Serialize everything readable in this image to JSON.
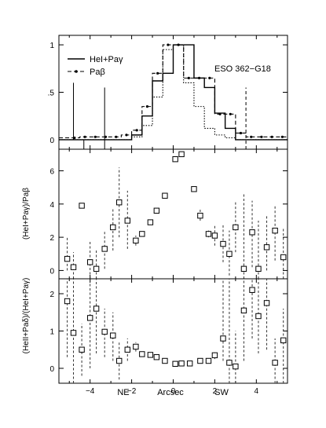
{
  "chart_data": [
    {
      "type": "line",
      "xlim": [
        -5.5,
        5.5
      ],
      "ylim": [
        -0.1,
        1.1
      ],
      "yticks": [
        {
          "v": 0,
          "label": "0"
        },
        {
          "v": 0.5,
          "label": ".5"
        },
        {
          "v": 1,
          "label": "1"
        }
      ],
      "annotation": "ESO 362−G18",
      "legend_position": "top-left",
      "series": [
        {
          "name": "HeI+Paγ",
          "style": "solid-step",
          "x": [
            -5.5,
            -5.0,
            -4.5,
            -4.0,
            -3.5,
            -3.0,
            -2.5,
            -2.0,
            -1.5,
            -1.0,
            -0.5,
            0.0,
            0.5,
            1.0,
            1.5,
            2.0,
            2.5,
            3.0,
            3.5,
            4.0,
            4.5,
            5.0,
            5.5
          ],
          "y": [
            0.0,
            0.0,
            0.0,
            0.0,
            0.0,
            0.0,
            0.0,
            0.05,
            0.25,
            0.62,
            0.7,
            1.0,
            1.0,
            0.65,
            0.55,
            0.28,
            0.12,
            0.0,
            0.0,
            0.0,
            0.0,
            0.0,
            0.0
          ]
        },
        {
          "name": "Paβ",
          "style": "dashed-step-points",
          "x": [
            -5.5,
            -5.0,
            -4.5,
            -4.0,
            -3.5,
            -3.0,
            -2.5,
            -2.0,
            -1.5,
            -1.0,
            -0.5,
            0.0,
            0.5,
            1.0,
            1.5,
            2.0,
            2.5,
            3.0,
            3.5,
            4.0,
            4.5,
            5.0,
            5.5
          ],
          "y": [
            0.02,
            0.02,
            0.03,
            0.03,
            0.03,
            0.03,
            0.05,
            0.1,
            0.35,
            0.7,
            1.0,
            1.0,
            0.65,
            0.65,
            0.65,
            0.27,
            0.27,
            0.07,
            0.03,
            0.03,
            0.03,
            0.03,
            0.03
          ]
        },
        {
          "name": "",
          "style": "dotted-step",
          "x": [
            -5.5,
            -5.0,
            -4.5,
            -4.0,
            -3.5,
            -3.0,
            -2.5,
            -2.0,
            -1.5,
            -1.0,
            -0.5,
            0.0,
            0.5,
            1.0,
            1.5,
            2.0,
            2.5,
            3.0,
            3.5,
            4.0,
            4.5,
            5.0,
            5.5
          ],
          "y": [
            0.0,
            0.0,
            0.0,
            0.0,
            0.0,
            0.0,
            0.0,
            0.03,
            0.15,
            0.45,
            0.95,
            1.0,
            0.6,
            0.35,
            0.12,
            0.05,
            0.02,
            0.0,
            0.0,
            0.0,
            0.0,
            0.0,
            0.0
          ]
        }
      ],
      "vertical_lines": [
        {
          "x": -4.8,
          "y0": 0,
          "y1": 0.6,
          "style": "solid"
        },
        {
          "x": -4.3,
          "y0": -0.1,
          "y1": 0.0,
          "style": "solid"
        },
        {
          "x": -3.3,
          "y0": -0.1,
          "y1": 0.55,
          "style": "solid"
        },
        {
          "x": 3.5,
          "y0": -0.1,
          "y1": 0.55,
          "style": "dashed"
        }
      ]
    },
    {
      "type": "scatter",
      "ylabel": "(HeI+Paγ)/Paβ",
      "xlim": [
        -5.5,
        5.5
      ],
      "ylim": [
        -0.5,
        7.3
      ],
      "yticks": [
        {
          "v": 0,
          "label": "0"
        },
        {
          "v": 2,
          "label": "2"
        },
        {
          "v": 4,
          "label": "4"
        },
        {
          "v": 6,
          "label": "6"
        }
      ],
      "points": [
        {
          "x": -5.1,
          "y": 0.7,
          "lo": 0.0,
          "hi": 2.0
        },
        {
          "x": -4.8,
          "y": 0.2,
          "lo": -0.5,
          "hi": 1.1
        },
        {
          "x": -4.4,
          "y": 3.9,
          "lo": 3.8,
          "hi": 4.0
        },
        {
          "x": -4.0,
          "y": 0.5,
          "lo": -0.5,
          "hi": 1.8
        },
        {
          "x": -3.7,
          "y": 0.1,
          "lo": -0.5,
          "hi": 1.2
        },
        {
          "x": -3.3,
          "y": 1.3,
          "lo": 0.1,
          "hi": 2.4
        },
        {
          "x": -2.9,
          "y": 2.6,
          "lo": 1.2,
          "hi": 3.8
        },
        {
          "x": -2.6,
          "y": 4.1,
          "lo": 2.0,
          "hi": 6.2
        },
        {
          "x": -2.2,
          "y": 3.0,
          "lo": 1.3,
          "hi": 4.8
        },
        {
          "x": -1.8,
          "y": 1.8,
          "lo": 1.5,
          "hi": 2.1
        },
        {
          "x": -1.5,
          "y": 2.2,
          "lo": 2.1,
          "hi": 2.3
        },
        {
          "x": -1.1,
          "y": 2.9,
          "lo": 2.8,
          "hi": 3.0
        },
        {
          "x": -0.8,
          "y": 3.6,
          "lo": 3.5,
          "hi": 3.7
        },
        {
          "x": -0.4,
          "y": 4.5,
          "lo": 4.4,
          "hi": 4.6
        },
        {
          "x": 0.1,
          "y": 6.7,
          "lo": 6.6,
          "hi": 6.8
        },
        {
          "x": 0.4,
          "y": 7.0,
          "lo": 6.9,
          "hi": 7.1
        },
        {
          "x": 1.0,
          "y": 4.9,
          "lo": 4.8,
          "hi": 5.0
        },
        {
          "x": 1.3,
          "y": 3.3,
          "lo": 3.0,
          "hi": 3.7
        },
        {
          "x": 1.7,
          "y": 2.2,
          "lo": 2.0,
          "hi": 2.4
        },
        {
          "x": 2.0,
          "y": 2.1,
          "lo": 1.5,
          "hi": 2.7
        },
        {
          "x": 2.4,
          "y": 1.6,
          "lo": 0.5,
          "hi": 2.8
        },
        {
          "x": 2.7,
          "y": 1.0,
          "lo": -0.3,
          "hi": 2.4
        },
        {
          "x": 3.0,
          "y": 2.6,
          "lo": 1.1,
          "hi": 4.2
        },
        {
          "x": 3.4,
          "y": 0.1,
          "lo": -0.5,
          "hi": 4.6
        },
        {
          "x": 3.8,
          "y": 2.3,
          "lo": 0.2,
          "hi": 4.2
        },
        {
          "x": 4.1,
          "y": 0.1,
          "lo": -0.5,
          "hi": 3.0
        },
        {
          "x": 4.5,
          "y": 1.4,
          "lo": 0.0,
          "hi": 3.3
        },
        {
          "x": 4.9,
          "y": 2.4,
          "lo": 0.6,
          "hi": 3.9
        },
        {
          "x": 5.3,
          "y": 0.8,
          "lo": -0.5,
          "hi": 2.5
        }
      ]
    },
    {
      "type": "scatter",
      "ylabel": "(HeII+Paδ)/(HeI+Paγ)",
      "xlabel": "Arcsec",
      "xlabel_left": "NE",
      "xlabel_right": "SW",
      "xlim": [
        -5.5,
        5.5
      ],
      "ylim": [
        -0.4,
        2.4
      ],
      "xticks": [
        {
          "v": -4,
          "label": "−4"
        },
        {
          "v": -2,
          "label": "−2"
        },
        {
          "v": 0,
          "label": "0"
        },
        {
          "v": 2,
          "label": "2"
        },
        {
          "v": 4,
          "label": "4"
        }
      ],
      "yticks": [
        {
          "v": 0,
          "label": "0"
        },
        {
          "v": 1,
          "label": "1"
        },
        {
          "v": 2,
          "label": "2"
        }
      ],
      "points": [
        {
          "x": -5.1,
          "y": 1.8,
          "lo": 0.3,
          "hi": 2.4
        },
        {
          "x": -4.8,
          "y": 0.95,
          "lo": -0.4,
          "hi": 2.4
        },
        {
          "x": -4.4,
          "y": 0.5,
          "lo": -0.2,
          "hi": 1.2
        },
        {
          "x": -4.0,
          "y": 1.35,
          "lo": 0.0,
          "hi": 2.4
        },
        {
          "x": -3.7,
          "y": 1.6,
          "lo": 0.4,
          "hi": 2.4
        },
        {
          "x": -3.3,
          "y": 0.98,
          "lo": 0.3,
          "hi": 1.6
        },
        {
          "x": -2.9,
          "y": 0.88,
          "lo": 0.2,
          "hi": 1.5
        },
        {
          "x": -2.6,
          "y": 0.2,
          "lo": -0.3,
          "hi": 0.7
        },
        {
          "x": -2.2,
          "y": 0.5,
          "lo": 0.2,
          "hi": 0.8
        },
        {
          "x": -1.8,
          "y": 0.58,
          "lo": 0.45,
          "hi": 0.7
        },
        {
          "x": -1.5,
          "y": 0.38,
          "lo": 0.34,
          "hi": 0.42
        },
        {
          "x": -1.1,
          "y": 0.36,
          "lo": 0.32,
          "hi": 0.4
        },
        {
          "x": -0.8,
          "y": 0.3,
          "lo": 0.27,
          "hi": 0.33
        },
        {
          "x": -0.4,
          "y": 0.2,
          "lo": 0.18,
          "hi": 0.22
        },
        {
          "x": 0.1,
          "y": 0.12,
          "lo": 0.1,
          "hi": 0.14
        },
        {
          "x": 0.4,
          "y": 0.13,
          "lo": 0.11,
          "hi": 0.15
        },
        {
          "x": 0.8,
          "y": 0.13,
          "lo": 0.11,
          "hi": 0.15
        },
        {
          "x": 1.3,
          "y": 0.2,
          "lo": 0.17,
          "hi": 0.23
        },
        {
          "x": 1.7,
          "y": 0.2,
          "lo": 0.15,
          "hi": 0.25
        },
        {
          "x": 2.0,
          "y": 0.35,
          "lo": 0.25,
          "hi": 0.45
        },
        {
          "x": 2.4,
          "y": 0.8,
          "lo": 0.2,
          "hi": 2.4
        },
        {
          "x": 2.7,
          "y": 0.15,
          "lo": -0.4,
          "hi": 2.4
        },
        {
          "x": 3.0,
          "y": 0.05,
          "lo": -0.4,
          "hi": 1.0
        },
        {
          "x": 3.4,
          "y": 1.55,
          "lo": 0.2,
          "hi": 2.4
        },
        {
          "x": 3.8,
          "y": 2.1,
          "lo": 0.8,
          "hi": 2.4
        },
        {
          "x": 4.1,
          "y": 1.4,
          "lo": 0.4,
          "hi": 2.4
        },
        {
          "x": 4.5,
          "y": 1.75,
          "lo": 0.5,
          "hi": 2.4
        },
        {
          "x": 4.9,
          "y": 0.15,
          "lo": -0.4,
          "hi": 0.8
        },
        {
          "x": 5.3,
          "y": 0.75,
          "lo": -0.4,
          "hi": 1.6
        }
      ]
    }
  ]
}
